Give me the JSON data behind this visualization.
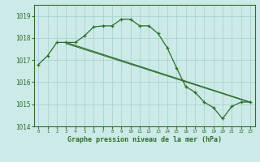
{
  "background_color": "#cceae7",
  "grid_color": "#aad4d0",
  "line_color": "#2d6e2d",
  "title": "Graphe pression niveau de la mer (hPa)",
  "xlim": [
    -0.5,
    23.5
  ],
  "ylim": [
    1014,
    1019.5
  ],
  "yticks": [
    1014,
    1015,
    1016,
    1017,
    1018,
    1019
  ],
  "xticks": [
    0,
    1,
    2,
    3,
    4,
    5,
    6,
    7,
    8,
    9,
    10,
    11,
    12,
    13,
    14,
    15,
    16,
    17,
    18,
    19,
    20,
    21,
    22,
    23
  ],
  "series1_x": [
    0,
    1,
    2,
    3,
    4,
    5,
    6,
    7,
    8,
    9,
    10,
    11,
    12,
    13,
    14,
    15,
    16,
    17,
    18,
    19,
    20,
    21,
    22,
    23
  ],
  "series1_y": [
    1016.8,
    1017.2,
    1017.8,
    1017.8,
    1017.8,
    1018.1,
    1018.5,
    1018.55,
    1018.55,
    1018.85,
    1018.85,
    1018.55,
    1018.55,
    1018.2,
    1017.55,
    1016.65,
    1015.8,
    1015.55,
    1015.1,
    1014.85,
    1014.35,
    1014.9,
    1015.1,
    1015.1
  ],
  "series2_x": [
    3,
    23
  ],
  "series2_y": [
    1017.8,
    1015.1
  ],
  "series3_x": [
    3,
    23
  ],
  "series3_y": [
    1017.75,
    1015.08
  ],
  "figsize": [
    3.2,
    2.0
  ],
  "dpi": 100
}
